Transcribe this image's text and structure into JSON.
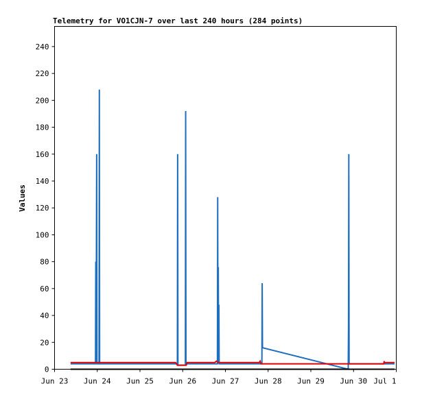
{
  "chart_data": {
    "type": "line",
    "title": "Telemetry for VO1CJN-7 over last 240 hours (284 points)",
    "ylabel": "Values",
    "xlabel": "",
    "ylim": [
      0,
      255
    ],
    "x_tick_labels": [
      "Jun 23",
      "Jun 24",
      "Jun 25",
      "Jun 26",
      "Jun 27",
      "Jun 28",
      "Jun 29",
      "Jun 30",
      "Jul 1"
    ],
    "y_ticks": [
      0,
      20,
      40,
      60,
      80,
      100,
      120,
      140,
      160,
      180,
      200,
      220,
      240
    ],
    "grid": false,
    "colors": {
      "series_blue": "#1f6fbf",
      "series_red": "#e00000",
      "series_black": "#000000"
    },
    "series": [
      {
        "color": "#1f6fbf",
        "points": [
          [
            "Jun 23 09:00",
            4
          ],
          [
            "Jun 23 23:00",
            4
          ],
          [
            "Jun 23 23:10",
            80
          ],
          [
            "Jun 23 23:20",
            4
          ],
          [
            "Jun 23 23:40",
            160
          ],
          [
            "Jun 23 23:50",
            4
          ],
          [
            "Jun 24 01:00",
            4
          ],
          [
            "Jun 24 01:10",
            208
          ],
          [
            "Jun 24 01:20",
            4
          ],
          [
            "Jun 25 21:00",
            4
          ],
          [
            "Jun 25 21:10",
            160
          ],
          [
            "Jun 25 21:20",
            3
          ],
          [
            "Jun 26 01:30",
            3
          ],
          [
            "Jun 26 01:40",
            192
          ],
          [
            "Jun 26 01:50",
            4
          ],
          [
            "Jun 26 19:30",
            4
          ],
          [
            "Jun 26 19:40",
            128
          ],
          [
            "Jun 26 19:50",
            4
          ],
          [
            "Jun 26 20:00",
            76
          ],
          [
            "Jun 26 20:10",
            4
          ],
          [
            "Jun 26 20:20",
            48
          ],
          [
            "Jun 26 20:30",
            4
          ],
          [
            "Jun 27 20:30",
            4
          ],
          [
            "Jun 27 20:40",
            64
          ],
          [
            "Jun 27 20:50",
            16
          ],
          [
            "Jun 29 21:00",
            0
          ],
          [
            "Jun 29 21:10",
            32
          ],
          [
            "Jun 29 21:20",
            160
          ],
          [
            "Jun 29 21:30",
            4
          ],
          [
            "Jun 30 23:00",
            4
          ]
        ]
      },
      {
        "color": "#e00000",
        "points": [
          [
            "Jun 23 09:00",
            5
          ],
          [
            "Jun 25 20:00",
            5
          ],
          [
            "Jun 25 21:00",
            3
          ],
          [
            "Jun 26 02:00",
            3
          ],
          [
            "Jun 26 02:30",
            5
          ],
          [
            "Jun 26 18:00",
            5
          ],
          [
            "Jun 26 19:00",
            6
          ],
          [
            "Jun 26 20:00",
            5
          ],
          [
            "Jun 27 19:00",
            5
          ],
          [
            "Jun 27 19:30",
            6
          ],
          [
            "Jun 27 20:00",
            4
          ],
          [
            "Jun 30 17:00",
            4
          ],
          [
            "Jun 30 17:10",
            6
          ],
          [
            "Jun 30 17:20",
            5
          ],
          [
            "Jun 30 23:00",
            5
          ]
        ]
      },
      {
        "color": "#000000",
        "points": [
          [
            "Jun 23 09:00",
            0
          ],
          [
            "Jun 30 23:00",
            0
          ]
        ]
      }
    ]
  }
}
